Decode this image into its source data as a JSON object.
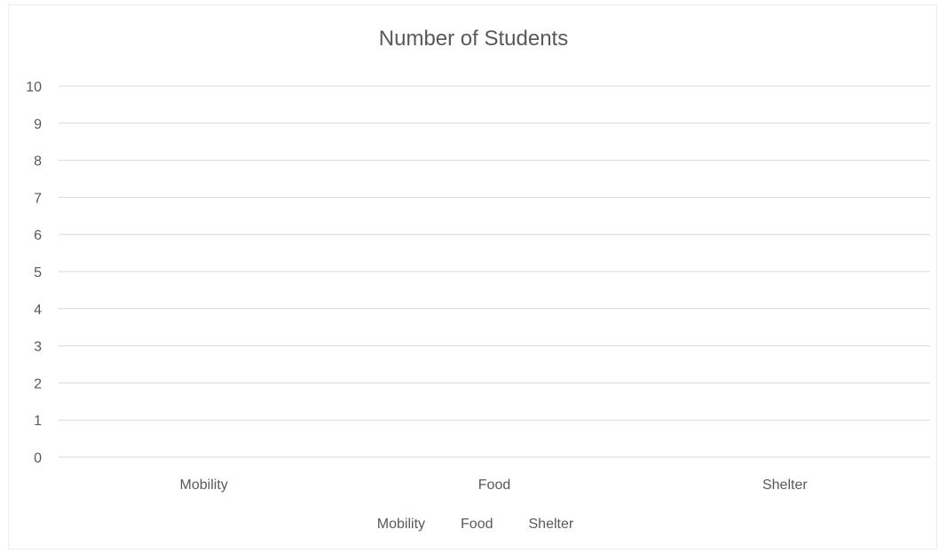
{
  "chart_data": {
    "type": "bar",
    "title": "Number of Students",
    "categories": [
      "Mobility",
      "Food",
      "Shelter"
    ],
    "series": [
      {
        "name": "Mobility",
        "values": [
          0,
          0,
          0
        ]
      },
      {
        "name": "Food",
        "values": [
          0,
          0,
          0
        ]
      },
      {
        "name": "Shelter",
        "values": [
          0,
          0,
          0
        ]
      }
    ],
    "ylim": [
      0,
      10
    ],
    "yticks": [
      0,
      1,
      2,
      3,
      4,
      5,
      6,
      7,
      8,
      9,
      10
    ],
    "xlabel": "",
    "ylabel": "",
    "grid": true,
    "legend_position": "bottom",
    "colors": {
      "grid": "#d9d9d9",
      "text": "#595959"
    }
  }
}
